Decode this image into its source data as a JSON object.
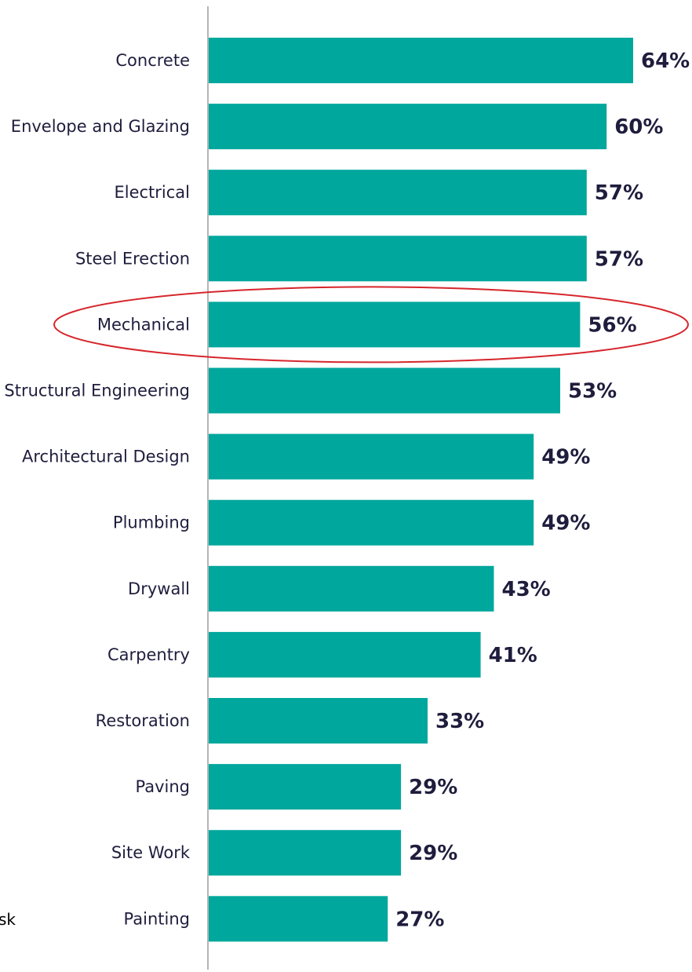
{
  "chart_data": {
    "type": "bar",
    "orientation": "horizontal",
    "categories": [
      "Concrete",
      "Envelope and Glazing",
      "Electrical",
      "Steel Erection",
      "Mechanical",
      "Structural Engineering",
      "Architectural Design",
      "Plumbing",
      "Drywall",
      "Carpentry",
      "Restoration",
      "Paving",
      "Site Work",
      "Painting"
    ],
    "values": [
      64,
      60,
      57,
      57,
      56,
      53,
      49,
      49,
      43,
      41,
      33,
      29,
      29,
      27
    ],
    "value_labels": [
      "64%",
      "60%",
      "57%",
      "57%",
      "56%",
      "53%",
      "49%",
      "49%",
      "43%",
      "41%",
      "33%",
      "29%",
      "29%",
      "27%"
    ],
    "title": "",
    "xlabel": "",
    "ylabel": "",
    "xlim": [
      0,
      64
    ],
    "grid": false,
    "bar_color": "#00a79d",
    "highlight": {
      "category": "Mechanical",
      "color": "#d6262c"
    }
  },
  "fragment_text": "sk"
}
